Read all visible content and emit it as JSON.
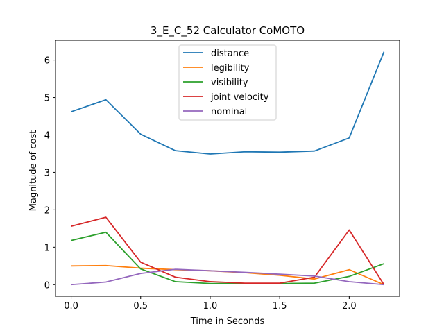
{
  "chart_data": {
    "type": "line",
    "title": "3_E_C_52 Calculator CoMOTO",
    "xlabel": "Time in Seconds",
    "ylabel": "Magnitude of cost",
    "xlim": [
      -0.1125,
      2.3625
    ],
    "ylim": [
      -0.31,
      6.53
    ],
    "xticks": [
      0.0,
      0.5,
      1.0,
      1.5,
      2.0
    ],
    "xtick_labels": [
      "0.0",
      "0.5",
      "1.0",
      "1.5",
      "2.0"
    ],
    "yticks": [
      0,
      1,
      2,
      3,
      4,
      5,
      6
    ],
    "ytick_labels": [
      "0",
      "1",
      "2",
      "3",
      "4",
      "5",
      "6"
    ],
    "grid": false,
    "legend_position": "top-center",
    "x": [
      0.0,
      0.25,
      0.5,
      0.75,
      1.0,
      1.25,
      1.5,
      1.75,
      2.0,
      2.25
    ],
    "series": [
      {
        "name": "distance",
        "color": "#1f77b4",
        "values": [
          4.62,
          4.94,
          4.02,
          3.58,
          3.49,
          3.55,
          3.54,
          3.57,
          3.92,
          6.22
        ]
      },
      {
        "name": "legibility",
        "color": "#ff7f0e",
        "values": [
          0.5,
          0.51,
          0.44,
          0.4,
          0.37,
          0.32,
          0.25,
          0.15,
          0.4,
          0.0
        ]
      },
      {
        "name": "visibility",
        "color": "#2ca02c",
        "values": [
          1.18,
          1.4,
          0.42,
          0.08,
          0.03,
          0.03,
          0.03,
          0.04,
          0.22,
          0.56
        ]
      },
      {
        "name": "joint velocity",
        "color": "#d62728",
        "values": [
          1.56,
          1.8,
          0.6,
          0.2,
          0.08,
          0.04,
          0.04,
          0.2,
          1.46,
          0.0
        ]
      },
      {
        "name": "nominal",
        "color": "#9467bd",
        "values": [
          0.0,
          0.07,
          0.3,
          0.41,
          0.37,
          0.33,
          0.28,
          0.23,
          0.08,
          0.0
        ]
      }
    ]
  }
}
